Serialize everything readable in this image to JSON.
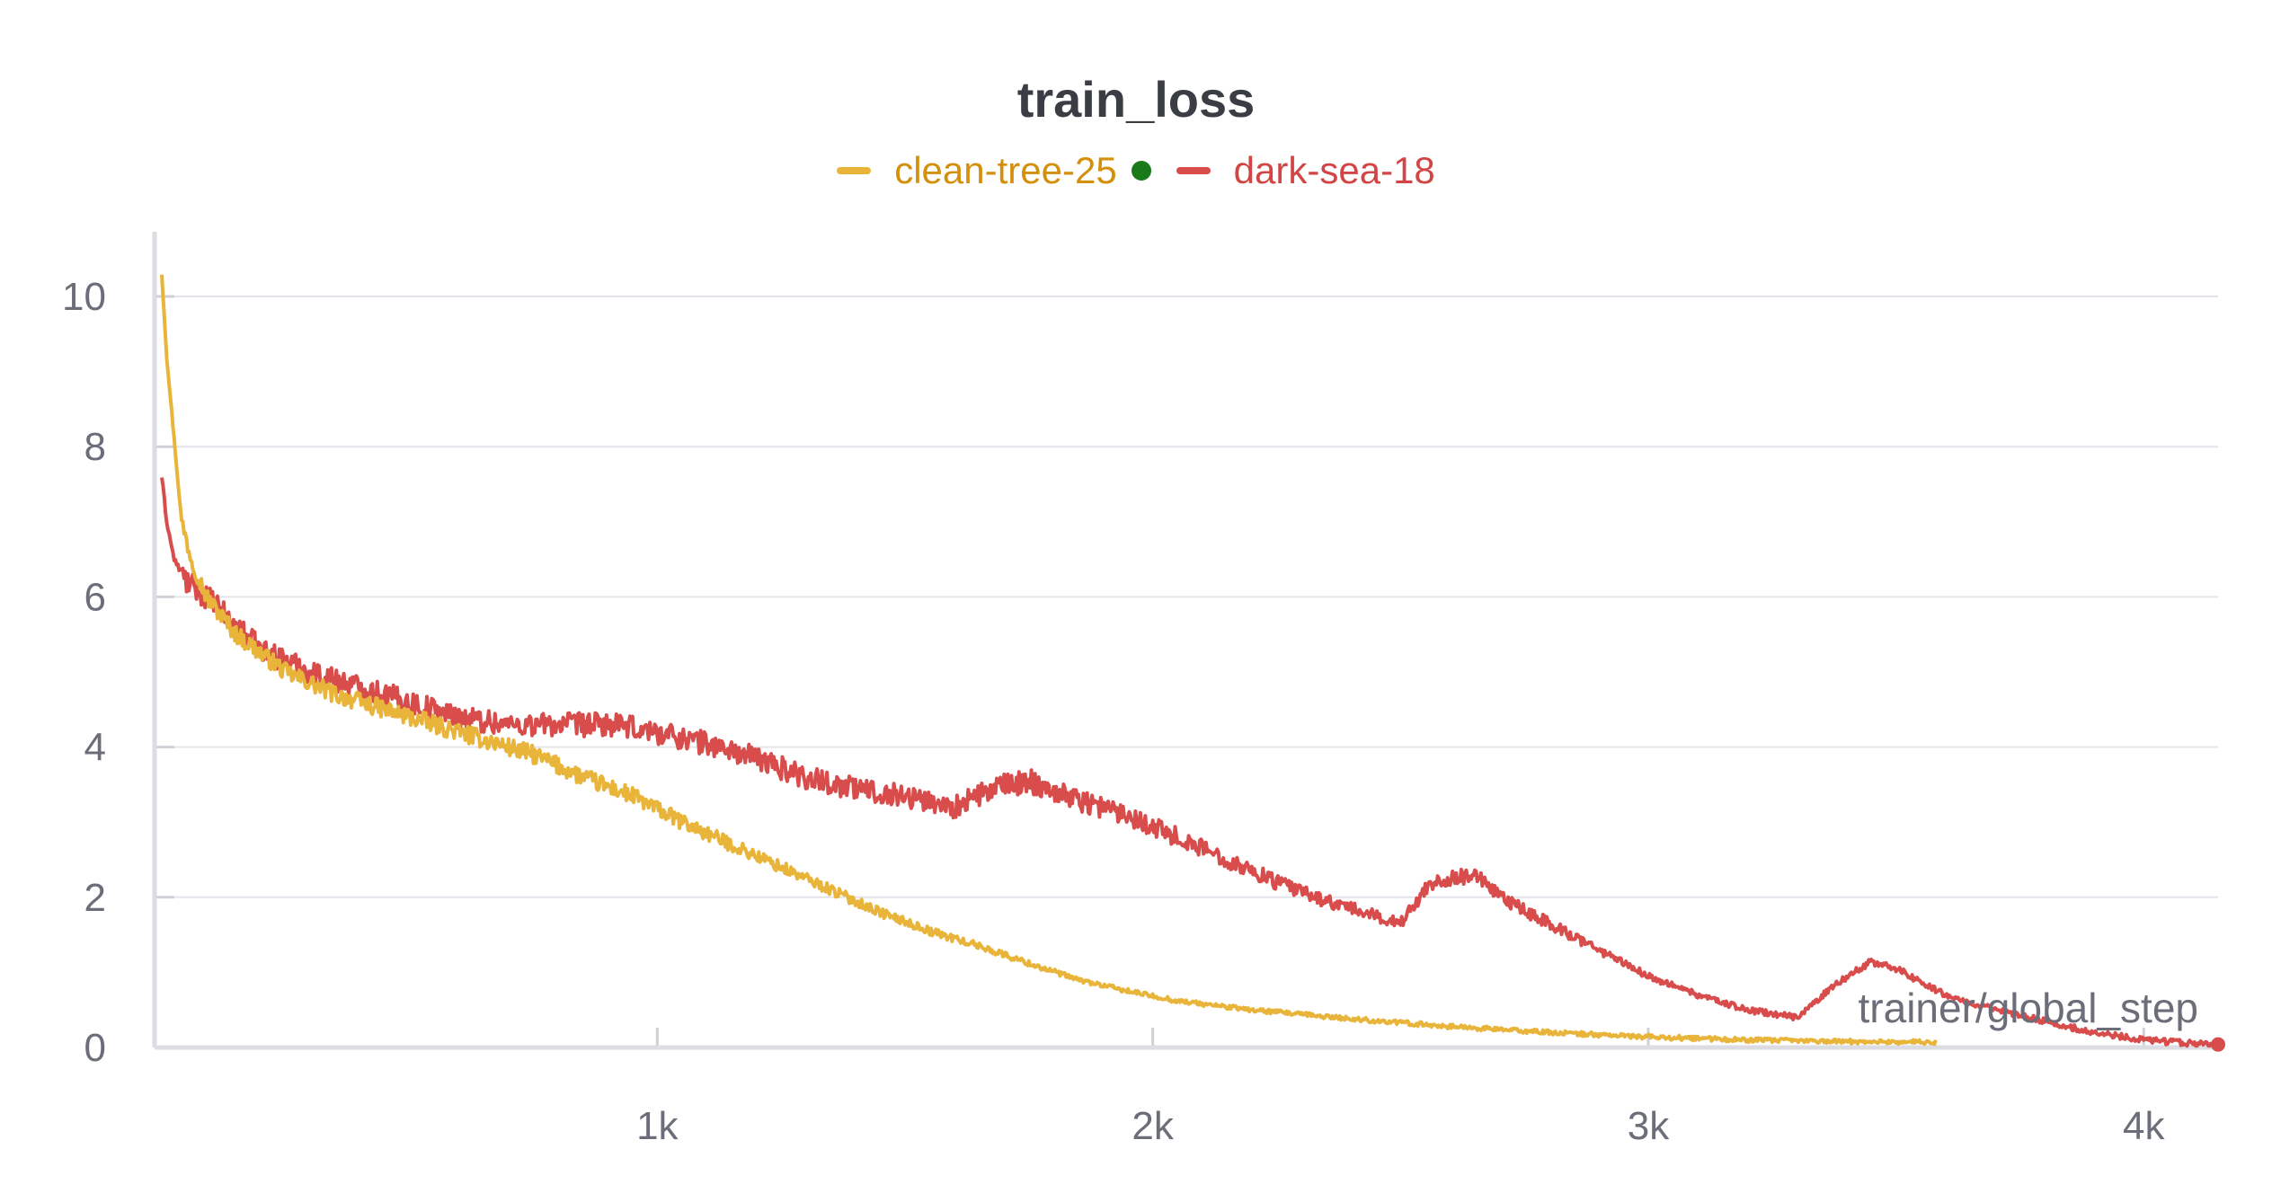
{
  "chart_data": {
    "type": "line",
    "title": "train_loss",
    "xlabel": "trainer/global_step",
    "ylabel": "",
    "xlim": [
      0,
      4150
    ],
    "ylim": [
      0,
      10
    ],
    "x_ticks": [
      {
        "value": 1000,
        "label": "1k"
      },
      {
        "value": 2000,
        "label": "2k"
      },
      {
        "value": 3000,
        "label": "3k"
      },
      {
        "value": 4000,
        "label": "4k"
      }
    ],
    "y_ticks": [
      {
        "value": 0,
        "label": "0"
      },
      {
        "value": 2,
        "label": "2"
      },
      {
        "value": 4,
        "label": "4"
      },
      {
        "value": 6,
        "label": "6"
      },
      {
        "value": 8,
        "label": "8"
      },
      {
        "value": 10,
        "label": "10"
      }
    ],
    "grid": true,
    "legend_position": "top-center",
    "series": [
      {
        "name": "clean-tree-25",
        "color": "#e9b43a",
        "legend_text_color": "#d4900c",
        "status_dot_color": "#1a7a1a",
        "noise": 0.12,
        "points": [
          [
            0,
            10.3
          ],
          [
            10,
            9.2
          ],
          [
            25,
            8.1
          ],
          [
            40,
            7.0
          ],
          [
            60,
            6.5
          ],
          [
            90,
            6.0
          ],
          [
            150,
            5.5
          ],
          [
            250,
            5.0
          ],
          [
            350,
            4.7
          ],
          [
            450,
            4.5
          ],
          [
            550,
            4.3
          ],
          [
            650,
            4.1
          ],
          [
            750,
            3.9
          ],
          [
            850,
            3.6
          ],
          [
            950,
            3.35
          ],
          [
            1050,
            3.0
          ],
          [
            1150,
            2.7
          ],
          [
            1250,
            2.4
          ],
          [
            1350,
            2.1
          ],
          [
            1450,
            1.8
          ],
          [
            1550,
            1.55
          ],
          [
            1650,
            1.35
          ],
          [
            1750,
            1.12
          ],
          [
            1850,
            0.9
          ],
          [
            1950,
            0.75
          ],
          [
            2050,
            0.62
          ],
          [
            2200,
            0.5
          ],
          [
            2400,
            0.38
          ],
          [
            2600,
            0.28
          ],
          [
            2800,
            0.2
          ],
          [
            3000,
            0.14
          ],
          [
            3200,
            0.1
          ],
          [
            3400,
            0.08
          ],
          [
            3580,
            0.07
          ]
        ]
      },
      {
        "name": "dark-sea-18",
        "color": "#d84c4c",
        "legend_text_color": "#d24545",
        "end_marker": true,
        "noise": 0.16,
        "points": [
          [
            0,
            7.6
          ],
          [
            10,
            7.0
          ],
          [
            25,
            6.5
          ],
          [
            50,
            6.2
          ],
          [
            100,
            5.95
          ],
          [
            150,
            5.6
          ],
          [
            200,
            5.3
          ],
          [
            300,
            5.0
          ],
          [
            400,
            4.8
          ],
          [
            500,
            4.6
          ],
          [
            600,
            4.4
          ],
          [
            700,
            4.3
          ],
          [
            800,
            4.3
          ],
          [
            900,
            4.3
          ],
          [
            1000,
            4.2
          ],
          [
            1100,
            4.05
          ],
          [
            1200,
            3.85
          ],
          [
            1300,
            3.6
          ],
          [
            1400,
            3.45
          ],
          [
            1500,
            3.35
          ],
          [
            1600,
            3.2
          ],
          [
            1680,
            3.45
          ],
          [
            1750,
            3.55
          ],
          [
            1850,
            3.3
          ],
          [
            1950,
            3.1
          ],
          [
            2050,
            2.8
          ],
          [
            2150,
            2.5
          ],
          [
            2250,
            2.2
          ],
          [
            2350,
            1.95
          ],
          [
            2450,
            1.75
          ],
          [
            2500,
            1.65
          ],
          [
            2560,
            2.2
          ],
          [
            2650,
            2.3
          ],
          [
            2700,
            2.0
          ],
          [
            2800,
            1.65
          ],
          [
            2900,
            1.3
          ],
          [
            3000,
            0.95
          ],
          [
            3100,
            0.7
          ],
          [
            3200,
            0.5
          ],
          [
            3300,
            0.4
          ],
          [
            3380,
            0.85
          ],
          [
            3450,
            1.15
          ],
          [
            3500,
            1.05
          ],
          [
            3600,
            0.7
          ],
          [
            3700,
            0.5
          ],
          [
            3800,
            0.35
          ],
          [
            3900,
            0.2
          ],
          [
            4000,
            0.1
          ],
          [
            4100,
            0.05
          ],
          [
            4150,
            0.04
          ]
        ]
      }
    ]
  }
}
